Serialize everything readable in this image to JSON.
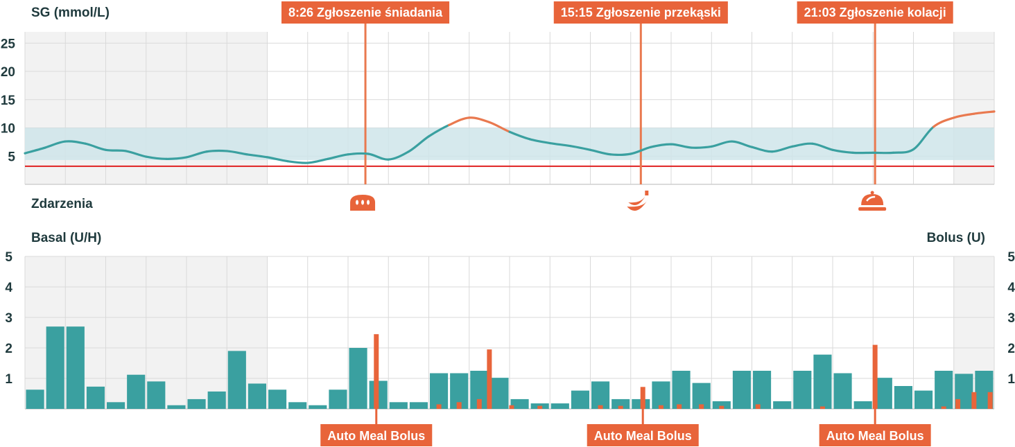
{
  "colors": {
    "teal": "#3aa0a0",
    "orange": "#e8643a",
    "orange_line": "#e9794f",
    "low_limit": "#e02020",
    "target_band": "#cfe5ea",
    "night_shade": "#f2f2f2",
    "grid": "#d9d9d9",
    "text": "#1f3a3d"
  },
  "sg_panel": {
    "ylabel": "SG (mmol/L)",
    "yticks": [
      "25",
      "20",
      "15",
      "10",
      "5"
    ],
    "events_label": "Zdarzenia"
  },
  "insulin_panel": {
    "ylabel_left": "Basal (U/H)",
    "ylabel_right": "Bolus (U)",
    "yticks_left": [
      "5",
      "4",
      "3",
      "2",
      "1"
    ],
    "yticks_right": [
      "5",
      "4",
      "3",
      "2",
      "1"
    ]
  },
  "meal_events": [
    {
      "time_h": 8.43,
      "label": "8:26 Zgłoszenie śniadania",
      "icon": "bread-icon"
    },
    {
      "time_h": 15.25,
      "label": "15:15 Zgłoszenie przekąski",
      "icon": "banana-icon"
    },
    {
      "time_h": 21.05,
      "label": "21:03 Zgłoszenie kolacji",
      "icon": "dinner-cloche-icon"
    }
  ],
  "auto_meal_bolus": [
    {
      "time_h": 8.7,
      "label": "Auto Meal Bolus"
    },
    {
      "time_h": 15.3,
      "label": "Auto Meal Bolus"
    },
    {
      "time_h": 21.05,
      "label": "Auto Meal Bolus"
    }
  ],
  "chart_data": [
    {
      "type": "line",
      "title": "SG (mmol/L)",
      "x_range_h": [
        0,
        24
      ],
      "ylim": [
        0,
        27
      ],
      "target_range": [
        4.3,
        10
      ],
      "low_limit": 3.2,
      "high_threshold": 10,
      "night_shading_h": [
        [
          0,
          6
        ],
        [
          23,
          24
        ]
      ],
      "grid": true,
      "series": [
        {
          "x": [
            0,
            0.5,
            1,
            1.5,
            2,
            2.5,
            3,
            3.5,
            4,
            4.5,
            5,
            5.5,
            6,
            6.5,
            7,
            7.5,
            8,
            8.5,
            9,
            9.5,
            10,
            10.5,
            11,
            11.5,
            12,
            12.5,
            13,
            13.5,
            14,
            14.5,
            15,
            15.5,
            16,
            16.5,
            17,
            17.5,
            18,
            18.5,
            19,
            19.5,
            20,
            20.5,
            21,
            21.5,
            22,
            22.5,
            23,
            23.5,
            24
          ],
          "values": [
            5.5,
            6.5,
            7.6,
            7.2,
            6.1,
            5.9,
            4.9,
            4.5,
            4.8,
            5.8,
            5.9,
            5.3,
            4.8,
            4.1,
            3.8,
            4.5,
            5.3,
            5.4,
            4.4,
            5.8,
            8.5,
            10.5,
            11.8,
            11,
            9.3,
            8,
            7.3,
            6.8,
            6.1,
            5.3,
            5.4,
            6.6,
            7.1,
            6.5,
            6.7,
            7.6,
            6.6,
            5.8,
            6.7,
            7.2,
            6.1,
            5.6,
            5.6,
            5.6,
            6.2,
            10.2,
            11.8,
            12.5,
            12.9
          ]
        }
      ]
    },
    {
      "type": "bar",
      "title": "Basal (U/H) / Bolus (U)",
      "x_range_h": [
        0,
        24
      ],
      "ylim": [
        0,
        5
      ],
      "night_shading_h": [
        [
          0,
          6
        ],
        [
          23,
          24
        ]
      ],
      "grid": true,
      "series": [
        {
          "name": "Basal (U/H)",
          "x": [
            0.25,
            0.75,
            1.25,
            1.75,
            2.25,
            2.75,
            3.25,
            3.75,
            4.25,
            4.75,
            5.25,
            5.75,
            6.25,
            6.75,
            7.25,
            7.75,
            8.25,
            8.75,
            9.25,
            9.75,
            10.25,
            10.75,
            11.25,
            11.75,
            12.25,
            12.75,
            13.25,
            13.75,
            14.25,
            14.75,
            15.25,
            15.75,
            16.25,
            16.75,
            17.25,
            17.75,
            18.25,
            18.75,
            19.25,
            19.75,
            20.25,
            20.75,
            21.25,
            21.75,
            22.25,
            22.75,
            23.25,
            23.75
          ],
          "values": [
            0.63,
            2.7,
            2.7,
            0.73,
            0.22,
            1.12,
            0.9,
            0.12,
            0.32,
            0.57,
            1.9,
            0.83,
            0.63,
            0.22,
            0.12,
            0.63,
            2.0,
            0.92,
            0.22,
            0.22,
            1.17,
            1.17,
            1.25,
            1.02,
            0.32,
            0.18,
            0.18,
            0.6,
            0.9,
            0.32,
            0.32,
            0.9,
            1.25,
            0.85,
            0.25,
            1.25,
            1.25,
            0.25,
            1.25,
            1.78,
            1.17,
            0.25,
            1.02,
            0.75,
            0.6,
            1.25,
            1.15,
            1.25
          ]
        },
        {
          "name": "Bolus (U)",
          "x": [
            8.7,
            10.25,
            10.75,
            11.25,
            11.5,
            12.05,
            12.75,
            14.25,
            14.75,
            15.3,
            15.75,
            16.2,
            16.75,
            17.25,
            18.15,
            19.75,
            21.05,
            22.75,
            23.1,
            23.5,
            23.9
          ],
          "values": [
            2.45,
            0.15,
            0.22,
            0.32,
            1.95,
            0.12,
            0.1,
            0.12,
            0.1,
            0.72,
            0.12,
            0.15,
            0.15,
            0.1,
            0.15,
            0.08,
            2.1,
            0.08,
            0.32,
            0.55,
            0.55
          ]
        }
      ]
    }
  ]
}
